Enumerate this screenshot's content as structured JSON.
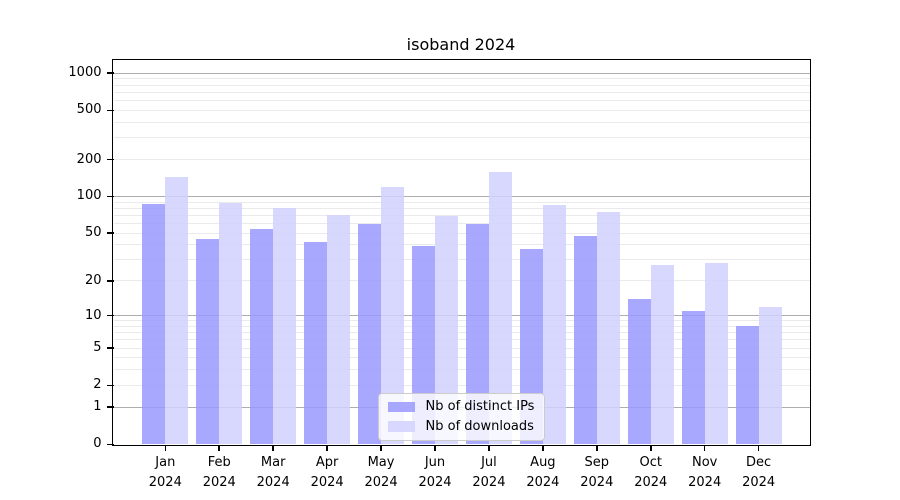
{
  "chart_data": {
    "type": "bar",
    "title": "isoband 2024",
    "categories": [
      "Jan 2024",
      "Feb 2024",
      "Mar 2024",
      "Apr 2024",
      "May 2024",
      "Jun 2024",
      "Jul 2024",
      "Aug 2024",
      "Sep 2024",
      "Oct 2024",
      "Nov 2024",
      "Dec 2024"
    ],
    "series": [
      {
        "name": "Nb of distinct IPs",
        "color": "#9999ff",
        "values": [
          87,
          45,
          54,
          42,
          59,
          39,
          60,
          37,
          47,
          14,
          11,
          8
        ]
      },
      {
        "name": "Nb of downloads",
        "color": "#d1d1ff",
        "values": [
          144,
          88,
          80,
          70,
          120,
          69,
          157,
          85,
          74,
          27,
          28,
          12
        ]
      }
    ],
    "bar_alpha": 0.85,
    "yscale": "log1p",
    "yticks": [
      0,
      1,
      2,
      5,
      10,
      20,
      50,
      100,
      200,
      500,
      1000
    ],
    "ylim": [
      0,
      1260
    ],
    "xlabel": "",
    "ylabel": "",
    "grid": {
      "orientation": "horizontal",
      "minor_color": "#eaeaea",
      "major_color": "#adadad"
    },
    "legend": {
      "position": "lower center"
    }
  }
}
